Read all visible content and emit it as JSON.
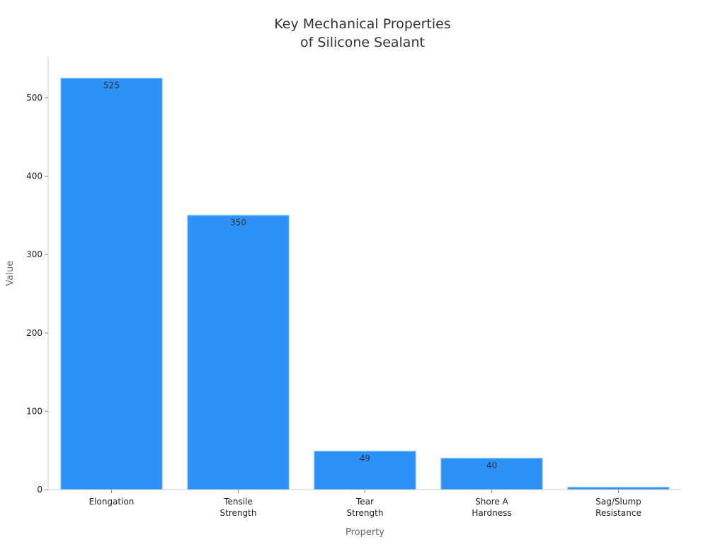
{
  "chart_data": {
    "type": "bar",
    "title": "Key Mechanical Properties\nof Silicone Sealant",
    "xlabel": "Property",
    "ylabel": "Value",
    "categories": [
      "Elongation",
      "Tensile\nStrength",
      "Tear\nStrength",
      "Shore A\nHardness",
      "Sag/Slump\nResistance"
    ],
    "values": [
      525,
      350,
      49,
      40,
      3
    ],
    "data_labels": [
      "525",
      "350",
      "49",
      "40",
      ""
    ],
    "ylim": [
      0,
      552
    ],
    "yticks": [
      0,
      100,
      200,
      300,
      400,
      500
    ],
    "grid": false,
    "legend": "none",
    "colors": {
      "bar": "#2d92f7",
      "bar_edge": "#7fc0ff",
      "axis": "#cccccc",
      "tick_text": "#222222",
      "title": "#333333",
      "axis_label": "#666666",
      "data_label": "#333333"
    }
  }
}
